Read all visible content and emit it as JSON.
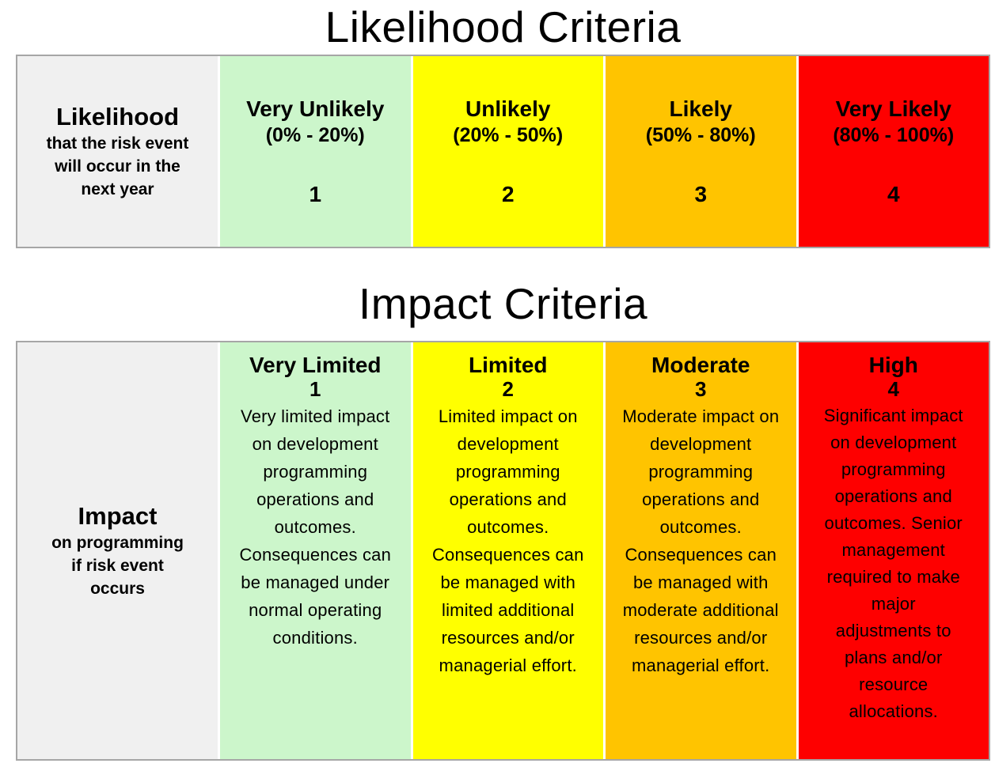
{
  "likelihood": {
    "title": "Likelihood Criteria",
    "header": {
      "title": "Likelihood",
      "subtitle": "that the risk event\nwill occur in the\nnext year"
    },
    "cells": [
      {
        "label": "Very Unlikely",
        "range": "(0% - 20%)",
        "score": "1",
        "color": "#ccf6cb"
      },
      {
        "label": "Unlikely",
        "range": "(20% - 50%)",
        "score": "2",
        "color": "#ffff00"
      },
      {
        "label": "Likely",
        "range": "(50% - 80%)",
        "score": "3",
        "color": "#ffc400"
      },
      {
        "label": "Very Likely",
        "range": "(80% - 100%)",
        "score": "4",
        "color": "#fe0000"
      }
    ]
  },
  "impact": {
    "title": "Impact Criteria",
    "header": {
      "title": "Impact",
      "subtitle": "on programming\nif risk event\noccurs"
    },
    "cells": [
      {
        "label": "Very Limited",
        "score": "1",
        "description": "Very limited impact\non development\nprogramming\noperations and\noutcomes.\nConsequences can\nbe managed under\nnormal operating\nconditions.",
        "color": "#ccf6cb"
      },
      {
        "label": "Limited",
        "score": "2",
        "description": "Limited impact on\ndevelopment\nprogramming\noperations and\noutcomes.\nConsequences can\nbe managed with\nlimited additional\nresources and/or\nmanagerial effort.",
        "color": "#ffff00"
      },
      {
        "label": "Moderate",
        "score": "3",
        "description": "Moderate impact on\ndevelopment\nprogramming\noperations and\noutcomes.\nConsequences can\nbe managed with\nmoderate additional\nresources and/or\nmanagerial effort.",
        "color": "#ffc400"
      },
      {
        "label": "High",
        "score": "4",
        "description": "Significant impact\non development\nprogramming\noperations and\noutcomes. Senior\nmanagement\nrequired to make\nmajor\nadjustments to\nplans and/or\nresource\nallocations.",
        "color": "#fe0000"
      }
    ]
  },
  "colors": {
    "header_cell_bg": "#f0f0f0",
    "table_border": "#a6a6a6",
    "cell_divider": "#ffffff",
    "text": "#000000",
    "page_bg": "#ffffff"
  }
}
